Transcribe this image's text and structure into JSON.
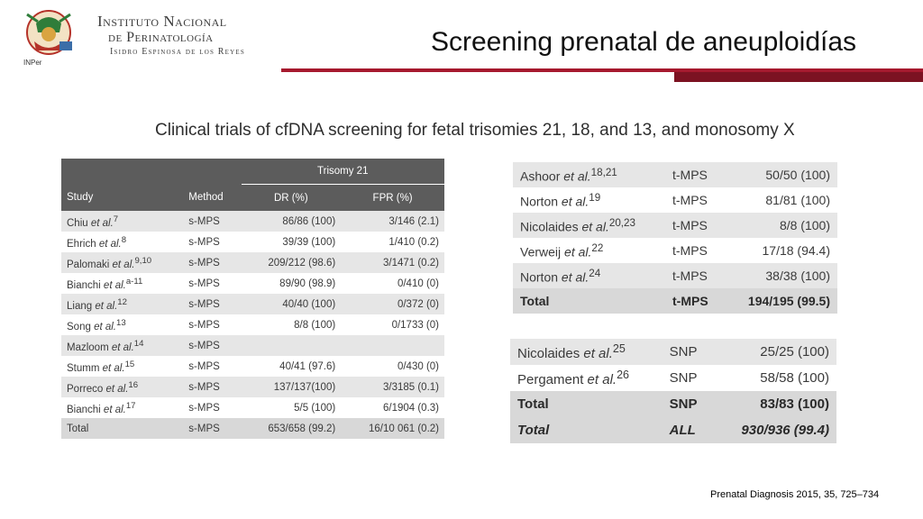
{
  "header": {
    "logo_text": "INPer",
    "institute_line1": "Instituto Nacional",
    "institute_line2": "de Perinatología",
    "institute_line3": "Isidro Espinosa de los Reyes",
    "title": "Screening prenatal de aneuploidías"
  },
  "colors": {
    "accent_bar": "#a6192e",
    "accent_bar_dark": "#7c1222",
    "table_header": "#5c5c5c",
    "row_shade": "#e6e6e6"
  },
  "subtitle": "Clinical trials of cfDNA screening for fetal trisomies 21, 18, and 13, and monosomy X",
  "left_table": {
    "group_header": "Trisomy 21",
    "col_study": "Study",
    "col_method": "Method",
    "col_dr": "DR (%)",
    "col_fpr": "FPR (%)",
    "rows": [
      {
        "study": "Chiu",
        "etal": "et al.",
        "ref": "7",
        "method": "s-MPS",
        "dr": "86/86 (100)",
        "fpr": "3/146 (2.1)"
      },
      {
        "study": "Ehrich",
        "etal": "et al.",
        "ref": "8",
        "method": "s-MPS",
        "dr": "39/39 (100)",
        "fpr": "1/410 (0.2)"
      },
      {
        "study": "Palomaki",
        "etal": "et al.",
        "ref": "9,10",
        "method": "s-MPS",
        "dr": "209/212 (98.6)",
        "fpr": "3/1471 (0.2)"
      },
      {
        "study": "Bianchi",
        "etal": "et al.",
        "ref": "a-11",
        "method": "s-MPS",
        "dr": "89/90 (98.9)",
        "fpr": "0/410 (0)"
      },
      {
        "study": "Liang",
        "etal": "et al.",
        "ref": "12",
        "method": "s-MPS",
        "dr": "40/40 (100)",
        "fpr": "0/372 (0)"
      },
      {
        "study": "Song",
        "etal": "et al.",
        "ref": "13",
        "method": "s-MPS",
        "dr": "8/8 (100)",
        "fpr": "0/1733 (0)"
      },
      {
        "study": "Mazloom",
        "etal": "et al.",
        "ref": "14",
        "method": "s-MPS",
        "dr": "",
        "fpr": ""
      },
      {
        "study": "Stumm",
        "etal": "et al.",
        "ref": "15",
        "method": "s-MPS",
        "dr": "40/41 (97.6)",
        "fpr": "0/430 (0)"
      },
      {
        "study": "Porreco",
        "etal": "et al.",
        "ref": "16",
        "method": "s-MPS",
        "dr": "137/137(100)",
        "fpr": "3/3185 (0.1)"
      },
      {
        "study": "Bianchi",
        "etal": "et al.",
        "ref": "17",
        "method": "s-MPS",
        "dr": "5/5 (100)",
        "fpr": "6/1904 (0.3)"
      }
    ],
    "total": {
      "study": "Total",
      "method": "s-MPS",
      "dr": "653/658 (99.2)",
      "fpr": "16/10 061 (0.2)"
    }
  },
  "right_table_1": {
    "rows": [
      {
        "study": "Ashoor",
        "etal": "et al.",
        "ref": "18,21",
        "method": "t-MPS",
        "dr": "50/50 (100)"
      },
      {
        "study": "Norton",
        "etal": "et al.",
        "ref": "19",
        "method": "t-MPS",
        "dr": "81/81 (100)"
      },
      {
        "study": "Nicolaides",
        "etal": "et al.",
        "ref": "20,23",
        "method": "t-MPS",
        "dr": "8/8 (100)"
      },
      {
        "study": "Verweij",
        "etal": "et al.",
        "ref": "22",
        "method": "t-MPS",
        "dr": "17/18 (94.4)"
      },
      {
        "study": "Norton",
        "etal": "et al.",
        "ref": "24",
        "method": "t-MPS",
        "dr": "38/38 (100)"
      }
    ],
    "total": {
      "study": "Total",
      "method": "t-MPS",
      "dr": "194/195 (99.5)"
    }
  },
  "right_table_2": {
    "rows": [
      {
        "study": "Nicolaides",
        "etal": "et al.",
        "ref": "25",
        "method": "SNP",
        "dr": "25/25 (100)"
      },
      {
        "study": "Pergament",
        "etal": "et al.",
        "ref": "26",
        "method": "SNP",
        "dr": "58/58 (100)"
      }
    ],
    "total": {
      "study": "Total",
      "method": "SNP",
      "dr": "83/83 (100)"
    },
    "grand_total": {
      "study": "Total",
      "method": "ALL",
      "dr": "930/936 (99.4)"
    }
  },
  "citation": "Prenatal Diagnosis 2015, 35, 725–734"
}
